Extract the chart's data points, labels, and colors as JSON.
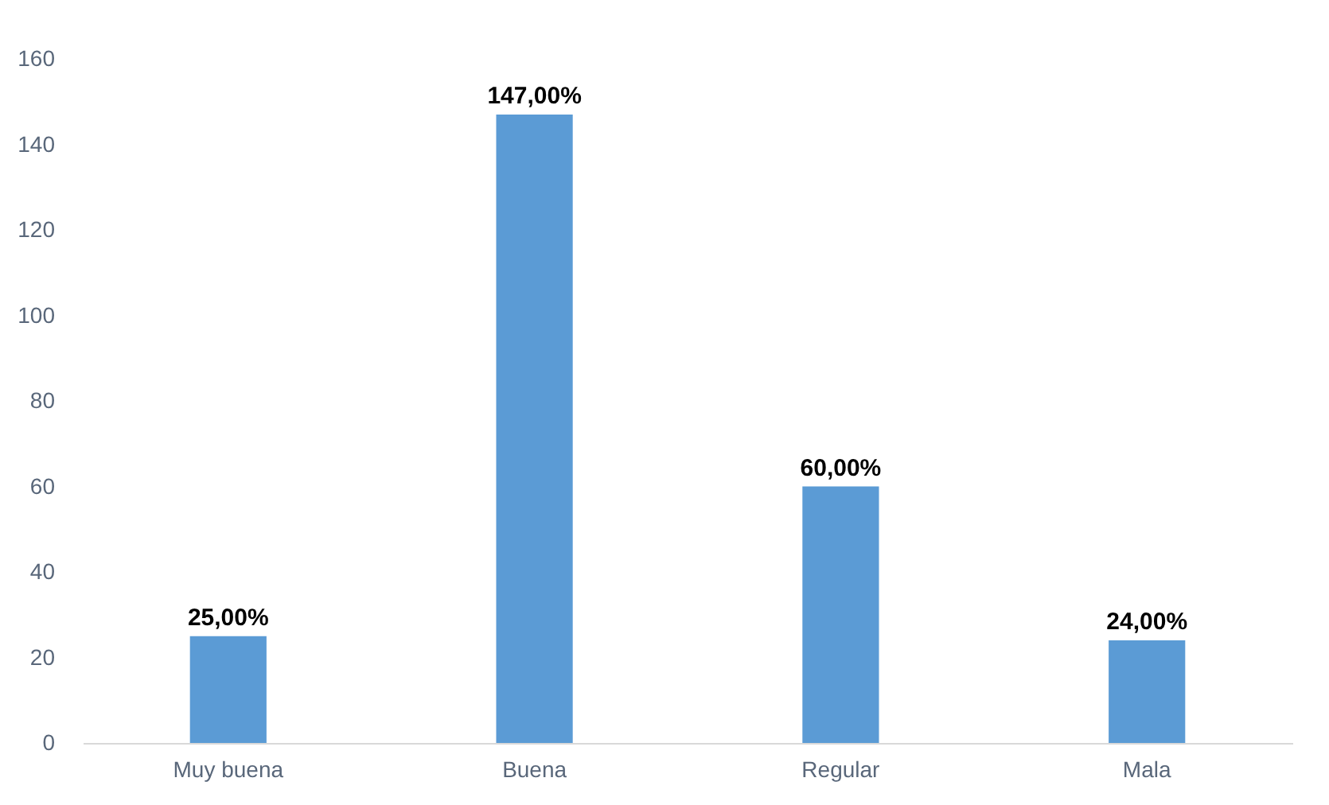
{
  "chart_data": {
    "type": "bar",
    "categories": [
      "Muy buena",
      "Buena",
      "Regular",
      "Mala"
    ],
    "values": [
      25,
      147,
      60,
      24
    ],
    "value_labels": [
      "25,00%",
      "147,00%",
      "60,00%",
      "24,00%"
    ],
    "color": "#5b9bd5",
    "ylim": [
      0,
      160
    ],
    "yticks": [
      0,
      20,
      40,
      60,
      80,
      100,
      120,
      140,
      160
    ]
  }
}
